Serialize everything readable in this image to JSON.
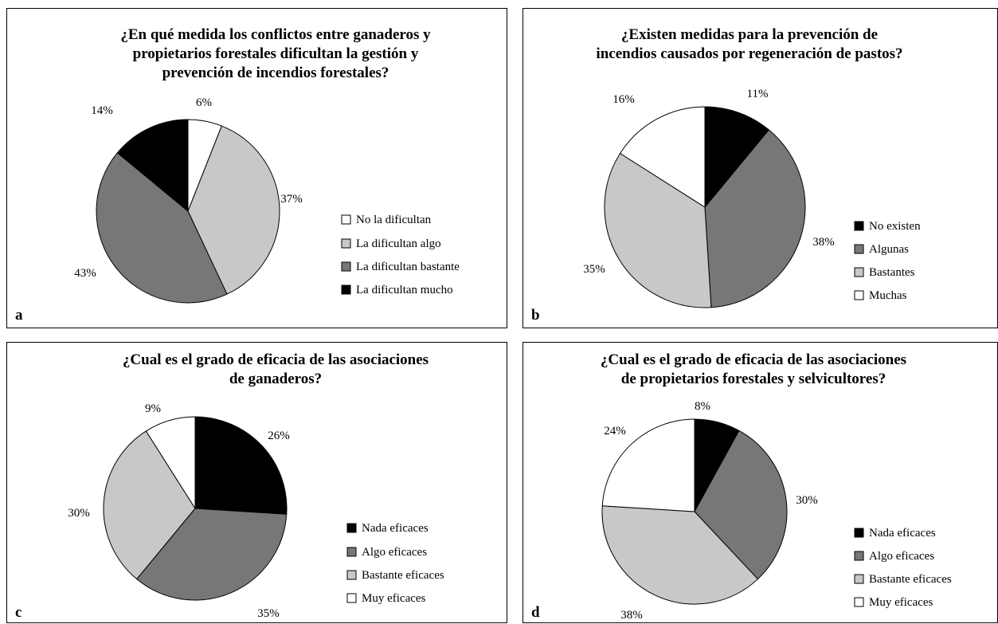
{
  "chart_data": [
    {
      "type": "pie",
      "panel_letter": "a",
      "title_lines": [
        "¿En qué medida los conflictos entre ganaderos y",
        "propietarios forestales dificultan la gestión y",
        "prevención de incendios forestales?"
      ],
      "categories": [
        "No la dificultan",
        "La dificultan algo",
        "La dificultan bastante",
        "La dificultan mucho"
      ],
      "values": [
        6,
        37,
        43,
        14
      ],
      "labels": [
        "6%",
        "37%",
        "43%",
        "14%"
      ],
      "colors": [
        "#ffffff",
        "#c8c8c8",
        "#777777",
        "#000000"
      ],
      "legend": "right"
    },
    {
      "type": "pie",
      "panel_letter": "b",
      "title_lines": [
        "¿Existen medidas para la prevención de",
        "incendios causados por regeneración de pastos?"
      ],
      "categories": [
        "No existen",
        "Algunas",
        "Bastantes",
        "Muchas"
      ],
      "values": [
        11,
        38,
        35,
        16
      ],
      "labels": [
        "11%",
        "38%",
        "35%",
        "16%"
      ],
      "colors": [
        "#000000",
        "#777777",
        "#c8c8c8",
        "#ffffff"
      ],
      "legend": "right"
    },
    {
      "type": "pie",
      "panel_letter": "c",
      "title_lines": [
        "¿Cual es el grado de eficacia de las asociaciones",
        "de ganaderos?"
      ],
      "categories": [
        "Nada eficaces",
        "Algo eficaces",
        "Bastante eficaces",
        "Muy eficaces"
      ],
      "values": [
        26,
        35,
        30,
        9
      ],
      "labels": [
        "26%",
        "35%",
        "30%",
        "9%"
      ],
      "colors": [
        "#000000",
        "#777777",
        "#c8c8c8",
        "#ffffff"
      ],
      "legend": "right"
    },
    {
      "type": "pie",
      "panel_letter": "d",
      "title_lines": [
        "¿Cual es el grado de eficacia de las asociaciones",
        "de propietarios forestales y selvicultores?"
      ],
      "categories": [
        "Nada eficaces",
        "Algo eficaces",
        "Bastante eficaces",
        "Muy eficaces"
      ],
      "values": [
        8,
        30,
        38,
        24
      ],
      "labels": [
        "8%",
        "30%",
        "38%",
        "24%"
      ],
      "colors": [
        "#000000",
        "#777777",
        "#c8c8c8",
        "#ffffff"
      ],
      "legend": "right"
    }
  ]
}
